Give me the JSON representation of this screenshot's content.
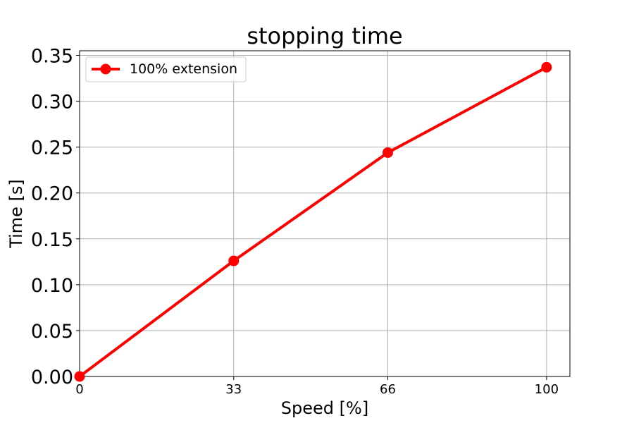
{
  "chart_data": {
    "type": "line",
    "title": "stopping time",
    "xlabel": "Speed [%]",
    "ylabel": "Time [s]",
    "x": [
      0,
      33,
      66,
      100
    ],
    "xticks": [
      "0",
      "33",
      "66",
      "100"
    ],
    "xlim": [
      0,
      105
    ],
    "ylim": [
      0,
      0.355
    ],
    "yticks": [
      "0.00",
      "0.05",
      "0.10",
      "0.15",
      "0.20",
      "0.25",
      "0.30",
      "0.35"
    ],
    "grid": true,
    "legend_position": "top-left",
    "series": [
      {
        "name": "100% extension",
        "color": "#ff0000",
        "marker": "circle",
        "values": [
          0.0,
          0.126,
          0.244,
          0.337
        ]
      }
    ]
  }
}
